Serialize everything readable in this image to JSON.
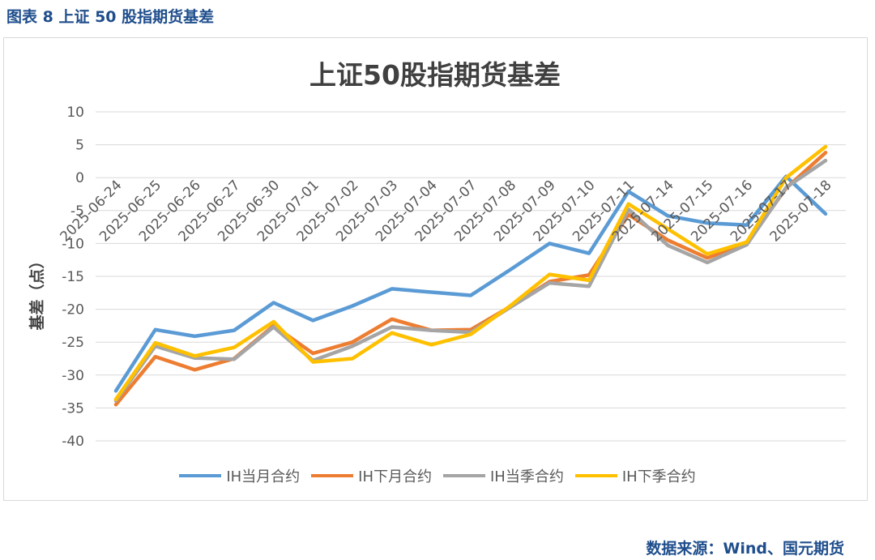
{
  "figure_caption": "图表 8 上证 50 股指期货基差",
  "source_note": "数据来源：Wind、国元期货",
  "chart_data": {
    "type": "line",
    "title": "上证50股指期货基差",
    "xlabel": "",
    "ylabel": "基差（点）",
    "ylim": [
      -40,
      10
    ],
    "yticks": [
      10,
      5,
      0,
      -5,
      -10,
      -15,
      -20,
      -25,
      -30,
      -35,
      -40
    ],
    "grid": true,
    "legend_position": "bottom",
    "categories": [
      "2025-06-24",
      "2025-06-25",
      "2025-06-26",
      "2025-06-27",
      "2025-06-30",
      "2025-07-01",
      "2025-07-02",
      "2025-07-03",
      "2025-07-04",
      "2025-07-07",
      "2025-07-08",
      "2025-07-09",
      "2025-07-10",
      "2025-07-11",
      "2025-07-14",
      "2025-07-15",
      "2025-07-16",
      "2025-07-17",
      "2025-07-18"
    ],
    "series": [
      {
        "name": "IH当月合约",
        "color": "#5b9bd5",
        "values": [
          -32.4,
          -23.1,
          -24.1,
          -23.2,
          -19.0,
          -21.7,
          -19.5,
          -16.9,
          -17.4,
          -17.9,
          -14.0,
          -10.0,
          -11.5,
          -2.1,
          -5.8,
          -6.9,
          -7.2,
          0.2,
          -5.5
        ]
      },
      {
        "name": "IH下月合约",
        "color": "#ed7d31",
        "values": [
          -34.5,
          -27.2,
          -29.2,
          -27.5,
          -22.5,
          -26.7,
          -25.0,
          -21.5,
          -23.2,
          -23.1,
          -19.6,
          -15.8,
          -14.8,
          -5.6,
          -9.5,
          -12.2,
          -10.0,
          -1.6,
          3.8
        ]
      },
      {
        "name": "IH当季合约",
        "color": "#a5a5a5",
        "values": [
          -33.9,
          -25.6,
          -27.4,
          -27.6,
          -22.7,
          -27.8,
          -25.6,
          -22.7,
          -23.2,
          -23.5,
          -19.7,
          -16.0,
          -16.5,
          -4.8,
          -10.3,
          -12.9,
          -10.2,
          -1.5,
          2.6
        ]
      },
      {
        "name": "IH下季合约",
        "color": "#ffc000",
        "values": [
          -33.7,
          -25.1,
          -27.1,
          -25.8,
          -21.9,
          -28.0,
          -27.5,
          -23.6,
          -25.4,
          -23.8,
          -19.5,
          -14.7,
          -15.6,
          -4.0,
          -7.8,
          -11.6,
          -9.8,
          0.0,
          4.7
        ]
      }
    ]
  }
}
